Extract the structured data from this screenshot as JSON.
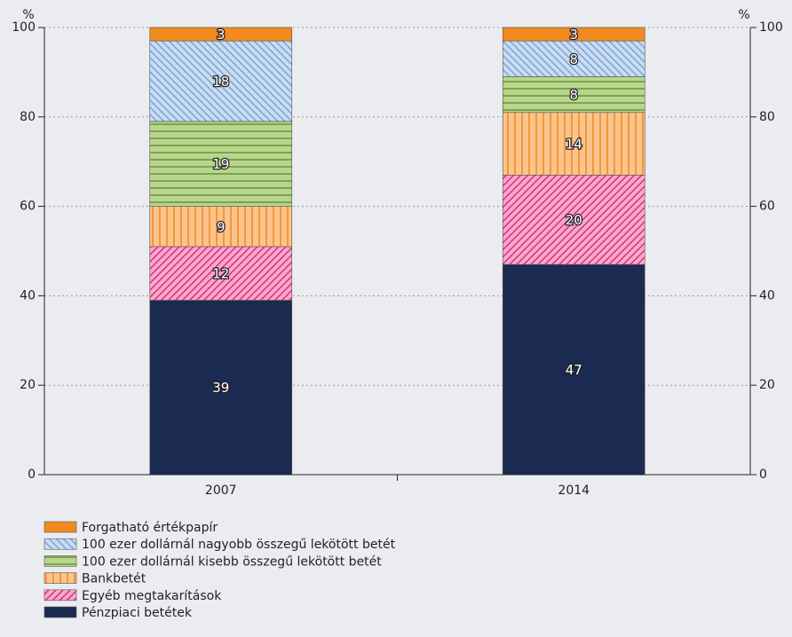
{
  "chart_data": {
    "type": "stacked_bar",
    "y_unit": "%",
    "y2_unit": "%",
    "categories": [
      "2007",
      "2014"
    ],
    "ylim": [
      0,
      100
    ],
    "yticks": [
      0,
      20,
      40,
      60,
      80,
      100
    ],
    "y2lim": [
      0,
      100
    ],
    "y2ticks": [
      0,
      20,
      40,
      60,
      80,
      100
    ],
    "grid": true,
    "series": [
      {
        "name": "Pénzpiaci betétek",
        "color": "#1b2a50",
        "hatch": "none",
        "hatch_color": "#1b2a50",
        "values": [
          39,
          47
        ]
      },
      {
        "name": "Egyéb megtakarítások",
        "color": "#f7a9c9",
        "hatch": "diag-up",
        "hatch_color": "#d9197a",
        "values": [
          12,
          20
        ]
      },
      {
        "name": "Bankbetét",
        "color": "#fbc48c",
        "hatch": "vertical",
        "hatch_color": "#f07d12",
        "values": [
          9,
          14
        ]
      },
      {
        "name": "100 ezer dollárnál kisebb összegű lekötött betét",
        "color": "#b8d68e",
        "hatch": "horizontal",
        "hatch_color": "#5e8a2a",
        "values": [
          19,
          8
        ]
      },
      {
        "name": "100 ezer dollárnál nagyobb összegű lekötött betét",
        "color": "#c9dcf2",
        "hatch": "diag-down",
        "hatch_color": "#6f9bd1",
        "values": [
          18,
          8
        ]
      },
      {
        "name": "Forgatható értékpapír",
        "color": "#f28a1e",
        "hatch": "none",
        "hatch_color": "#f28a1e",
        "values": [
          3,
          3
        ]
      }
    ]
  }
}
